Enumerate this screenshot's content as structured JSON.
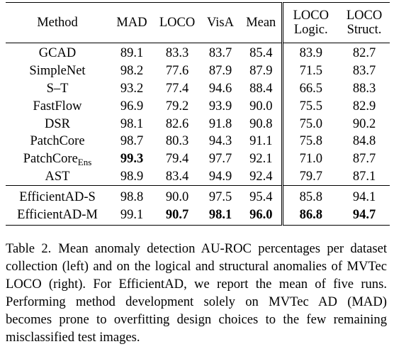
{
  "table": {
    "header": [
      "Method",
      "MAD",
      "LOCO",
      "VisA",
      "Mean",
      [
        "LOCO",
        "Logic."
      ],
      [
        "LOCO",
        "Struct."
      ]
    ],
    "groups": [
      {
        "rows": [
          [
            "GCAD",
            "89.1",
            "83.3",
            "83.7",
            "85.4",
            "83.9",
            "82.7"
          ],
          [
            "SimpleNet",
            "98.2",
            "77.6",
            "87.9",
            "87.9",
            "71.5",
            "83.7"
          ],
          [
            "S–T",
            "93.2",
            "77.4",
            "94.6",
            "88.4",
            "66.5",
            "88.3"
          ],
          [
            "FastFlow",
            "96.9",
            "79.2",
            "93.9",
            "90.0",
            "75.5",
            "82.9"
          ],
          [
            "DSR",
            "98.1",
            "82.6",
            "91.8",
            "90.8",
            "75.0",
            "90.2"
          ],
          [
            "PatchCore",
            "98.7",
            "80.3",
            "94.3",
            "91.1",
            "75.8",
            "84.8"
          ],
          [
            {
              "text": "PatchCore",
              "sub": "Ens"
            },
            {
              "text": "99.3",
              "bold": true
            },
            "79.4",
            "97.7",
            "92.1",
            "71.0",
            "87.7"
          ],
          [
            "AST",
            "98.9",
            "83.4",
            "94.9",
            "92.4",
            "79.7",
            "87.1"
          ]
        ]
      },
      {
        "rows": [
          [
            "EfficientAD-S",
            "98.8",
            "90.0",
            "97.5",
            "95.4",
            "85.8",
            "94.1"
          ],
          [
            "EfficientAD-M",
            "99.1",
            {
              "text": "90.7",
              "bold": true
            },
            {
              "text": "98.1",
              "bold": true
            },
            {
              "text": "96.0",
              "bold": true
            },
            {
              "text": "86.8",
              "bold": true
            },
            {
              "text": "94.7",
              "bold": true
            }
          ]
        ]
      }
    ]
  },
  "caption": {
    "label": "Table 2.",
    "text": "Mean anomaly detection AU-ROC percentages per dataset collection (left) and on the logical and structural anomalies of MVTec LOCO (right). For EfficientAD, we report the mean of five runs. Performing method development solely on MVTec AD (MAD) becomes prone to overfitting design choices to the few remaining misclassified test images."
  }
}
